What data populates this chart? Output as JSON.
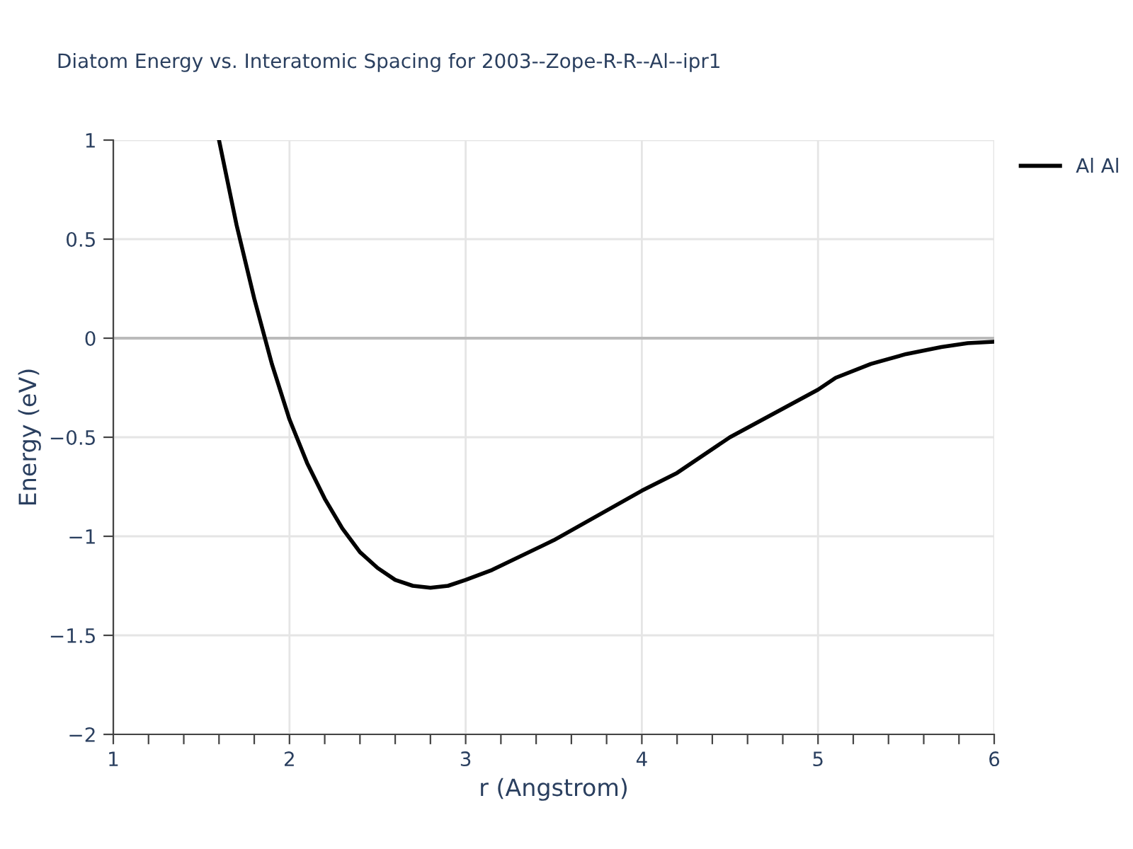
{
  "chart_data": {
    "type": "line",
    "title": "Diatom Energy vs. Interatomic Spacing for 2003--Zope-R-R--Al--ipr1",
    "xlabel": "r (Angstrom)",
    "ylabel": "Energy (eV)",
    "series": [
      {
        "name": "Al Al",
        "color": "#000000",
        "x": [
          1.6,
          1.7,
          1.8,
          1.9,
          2.0,
          2.1,
          2.2,
          2.3,
          2.4,
          2.5,
          2.6,
          2.7,
          2.8,
          2.9,
          3.0,
          3.15,
          3.5,
          4.0,
          4.2,
          4.5,
          5.0,
          5.1,
          5.3,
          5.5,
          5.7,
          5.85,
          6.0
        ],
        "values": [
          1.0,
          0.57,
          0.2,
          -0.13,
          -0.41,
          -0.63,
          -0.81,
          -0.96,
          -1.08,
          -1.16,
          -1.22,
          -1.25,
          -1.26,
          -1.25,
          -1.22,
          -1.17,
          -1.02,
          -0.77,
          -0.68,
          -0.5,
          -0.26,
          -0.2,
          -0.13,
          -0.08,
          -0.045,
          -0.025,
          -0.018
        ]
      }
    ],
    "xlim": [
      1,
      6
    ],
    "ylim": [
      -2,
      1
    ],
    "xticks": [
      1,
      {
        "value": 1.2,
        "label": null
      },
      {
        "value": 1.4,
        "label": null
      },
      {
        "value": 1.6,
        "label": null
      },
      {
        "value": 1.8,
        "label": null
      },
      2,
      {
        "value": 2.2,
        "label": null
      },
      {
        "value": 2.4,
        "label": null
      },
      {
        "value": 2.6,
        "label": null
      },
      {
        "value": 2.8,
        "label": null
      },
      3,
      {
        "value": 3.2,
        "label": null
      },
      {
        "value": 3.4,
        "label": null
      },
      {
        "value": 3.6,
        "label": null
      },
      {
        "value": 3.8,
        "label": null
      },
      4,
      {
        "value": 4.2,
        "label": null
      },
      {
        "value": 4.4,
        "label": null
      },
      {
        "value": 4.6,
        "label": null
      },
      {
        "value": 4.8,
        "label": null
      },
      5,
      {
        "value": 5.2,
        "label": null
      },
      {
        "value": 5.4,
        "label": null
      },
      {
        "value": 5.6,
        "label": null
      },
      {
        "value": 5.8,
        "label": null
      },
      6
    ],
    "yticks": [
      {
        "value": -2,
        "label": "−2"
      },
      {
        "value": -1.5,
        "label": "−1.5"
      },
      {
        "value": -1,
        "label": "−1"
      },
      {
        "value": -0.5,
        "label": "−0.5"
      },
      0,
      0.5,
      1
    ],
    "ref_lines": [
      {
        "axis": "y",
        "value": 0,
        "color": "#bbbbbb"
      }
    ],
    "grid": true,
    "legend": "top right",
    "line_style": "solid",
    "marker": "none"
  }
}
